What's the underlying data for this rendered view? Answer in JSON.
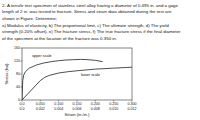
{
  "problem": {
    "lines": [
      "2- A tensile test specimen of stainless steel alloy having a diameter of 0.495 in. and a gage",
      "length of 2 in. was tested to fracture. Stress and strain data obtained during the test are",
      "shown in Figure. Determine;",
      "a) Modulus of elasticity, b) The proportional limit, c) The ultimate strength, d) The yield",
      "strength (0.20% offset), e) The fracture stress, f) The true fracture stress if the final diameter",
      "of the specimen at the location of the fracture was 0.350 in."
    ]
  },
  "chart_data": {
    "type": "line",
    "y_label": "Stress (ksi)",
    "x_label": "Strain (in./in.)",
    "xlim": [
      0,
      0.012
    ],
    "xticks": [
      {
        "value": 0,
        "label": "0.0"
      },
      0.002,
      0.004,
      0.006,
      0.008,
      {
        "value": 0.01,
        "label": "0.010"
      },
      0.012
    ],
    "x2lim": [
      0,
      0.3
    ],
    "x2ticks": [
      {
        "value": 0,
        "label": "0.0"
      },
      {
        "value": 0.05,
        "label": "0.050"
      },
      {
        "value": 0.1,
        "label": "0.100"
      },
      {
        "value": 0.15,
        "label": "0.150"
      },
      {
        "value": 0.2,
        "label": "0.200"
      },
      {
        "value": 0.25,
        "label": "0.250"
      },
      {
        "value": 0.3,
        "label": "0.300"
      }
    ],
    "ylim": [
      0,
      160
    ],
    "yticks": [
      0,
      40,
      80,
      120,
      160
    ],
    "grid": false,
    "series": [
      {
        "name": "upper scale",
        "color": "#222222",
        "axis": "x2",
        "x": [
          0,
          0.002,
          0.005,
          0.01,
          0.02,
          0.04,
          0.06,
          0.08,
          0.1,
          0.12,
          0.14,
          0.16,
          0.18,
          0.2,
          0.22
        ],
        "values": [
          0,
          60,
          78,
          88,
          98,
          108,
          114,
          118,
          121,
          123,
          124,
          125,
          124,
          122,
          118
        ]
      },
      {
        "name": "lower scale",
        "color": "#222222",
        "x": [
          0,
          0.001,
          0.002,
          0.0025,
          0.003,
          0.004,
          0.005,
          0.006,
          0.008,
          0.01,
          0.012
        ],
        "values": [
          0,
          30,
          60,
          70,
          76,
          83,
          87,
          90,
          95,
          98,
          101
        ]
      }
    ]
  }
}
